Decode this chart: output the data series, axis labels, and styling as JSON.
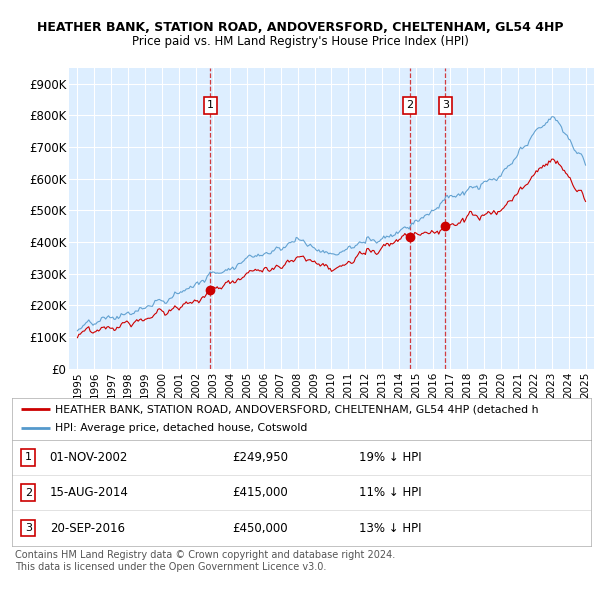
{
  "title1": "HEATHER BANK, STATION ROAD, ANDOVERSFORD, CHELTENHAM, GL54 4HP",
  "title2": "Price paid vs. HM Land Registry's House Price Index (HPI)",
  "bg_color": "#ddeeff",
  "grid_color": "#ffffff",
  "line_hpi_color": "#5599cc",
  "line_price_color": "#cc0000",
  "sale_dates_yr": [
    2002.833,
    2014.621,
    2016.722
  ],
  "sale_prices": [
    249950,
    415000,
    450000
  ],
  "sale_labels": [
    "1",
    "2",
    "3"
  ],
  "sale_info": [
    {
      "label": "1",
      "date": "01-NOV-2002",
      "price": "£249,950",
      "hpi": "19% ↓ HPI"
    },
    {
      "label": "2",
      "date": "15-AUG-2014",
      "price": "£415,000",
      "hpi": "11% ↓ HPI"
    },
    {
      "label": "3",
      "date": "20-SEP-2016",
      "price": "£450,000",
      "hpi": "13% ↓ HPI"
    }
  ],
  "legend_line1": "HEATHER BANK, STATION ROAD, ANDOVERSFORD, CHELTENHAM, GL54 4HP (detached h",
  "legend_line2": "HPI: Average price, detached house, Cotswold",
  "footer1": "Contains HM Land Registry data © Crown copyright and database right 2024.",
  "footer2": "This data is licensed under the Open Government Licence v3.0.",
  "ylim": [
    0,
    950000
  ],
  "yticks": [
    0,
    100000,
    200000,
    300000,
    400000,
    500000,
    600000,
    700000,
    800000,
    900000
  ],
  "ytick_labels": [
    "£0",
    "£100K",
    "£200K",
    "£300K",
    "£400K",
    "£500K",
    "£600K",
    "£700K",
    "£800K",
    "£900K"
  ],
  "xlim_start": 1994.5,
  "xlim_end": 2025.5,
  "xtick_years": [
    1995,
    1996,
    1997,
    1998,
    1999,
    2000,
    2001,
    2002,
    2003,
    2004,
    2005,
    2006,
    2007,
    2008,
    2009,
    2010,
    2011,
    2012,
    2013,
    2014,
    2015,
    2016,
    2017,
    2018,
    2019,
    2020,
    2021,
    2022,
    2023,
    2024,
    2025
  ]
}
